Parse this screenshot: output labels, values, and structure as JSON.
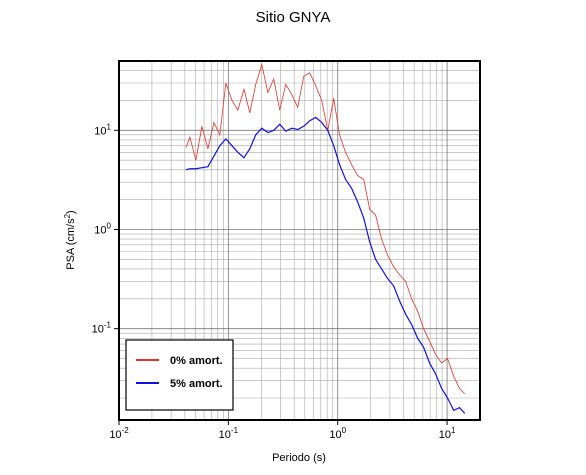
{
  "chart_data": {
    "type": "line",
    "title": "Sitio GNYA",
    "x_label": "Periodo (s)",
    "y_label": "PSA (cm/s",
    "y_label_sup": "2",
    "y_label_end": ")",
    "log_x": true,
    "log_y": true,
    "grid": true,
    "legend": "lower left",
    "xlim": [
      0.01,
      20
    ],
    "ylim": [
      0.012,
      50
    ],
    "xticks": [
      {
        "value": 0.01,
        "label": "10",
        "exponent": "-2"
      },
      {
        "value": 0.1,
        "label": "10",
        "exponent": "-1"
      },
      {
        "value": 1,
        "label": "10",
        "exponent": "0"
      },
      {
        "value": 10,
        "label": "10",
        "exponent": "1"
      }
    ],
    "yticks": [
      {
        "value": 0.1,
        "label": "10",
        "exponent": "-1"
      },
      {
        "value": 1,
        "label": "10",
        "exponent": "0"
      },
      {
        "value": 10,
        "label": "10",
        "exponent": "1"
      }
    ],
    "x": [
      0.0409,
      0.0445,
      0.0505,
      0.0573,
      0.065,
      0.0738,
      0.0836,
      0.0949,
      0.108,
      0.122,
      0.139,
      0.157,
      0.178,
      0.202,
      0.23,
      0.26,
      0.295,
      0.335,
      0.38,
      0.431,
      0.489,
      0.555,
      0.63,
      0.714,
      0.811,
      0.919,
      1.04,
      1.18,
      1.34,
      1.52,
      1.73,
      1.96,
      2.22,
      2.52,
      2.86,
      3.25,
      3.68,
      4.18,
      4.74,
      5.38,
      6.1,
      6.92,
      7.85,
      8.91,
      10.1,
      11.5,
      13.0,
      14.5
    ],
    "series": [
      {
        "name": "0% amort.",
        "color": "#e8302a",
        "values": [
          6.7,
          8.5,
          5.0,
          11,
          6.5,
          12,
          9,
          30,
          20,
          16,
          26,
          15,
          29,
          46,
          24,
          33,
          16,
          29,
          23,
          17,
          35,
          38,
          28,
          20,
          10,
          21,
          9,
          6,
          4.5,
          3.5,
          3.2,
          1.6,
          1.4,
          0.8,
          0.55,
          0.42,
          0.35,
          0.3,
          0.2,
          0.15,
          0.1,
          0.075,
          0.055,
          0.045,
          0.05,
          0.033,
          0.025,
          0.022
        ]
      },
      {
        "name": "5% amort.",
        "color": "#1010e0",
        "values": [
          4.0,
          4.1,
          4.1,
          4.2,
          4.3,
          5.5,
          7.0,
          8.2,
          7.0,
          6.0,
          5.3,
          6.5,
          9.0,
          10.5,
          9.5,
          10.0,
          11.5,
          9.8,
          10.5,
          10.2,
          11.0,
          12.5,
          13.5,
          12.0,
          10.0,
          7.0,
          4.5,
          3.2,
          2.6,
          1.9,
          1.3,
          0.75,
          0.5,
          0.4,
          0.32,
          0.27,
          0.19,
          0.14,
          0.11,
          0.08,
          0.065,
          0.045,
          0.035,
          0.025,
          0.02,
          0.015,
          0.016,
          0.014
        ]
      }
    ]
  }
}
